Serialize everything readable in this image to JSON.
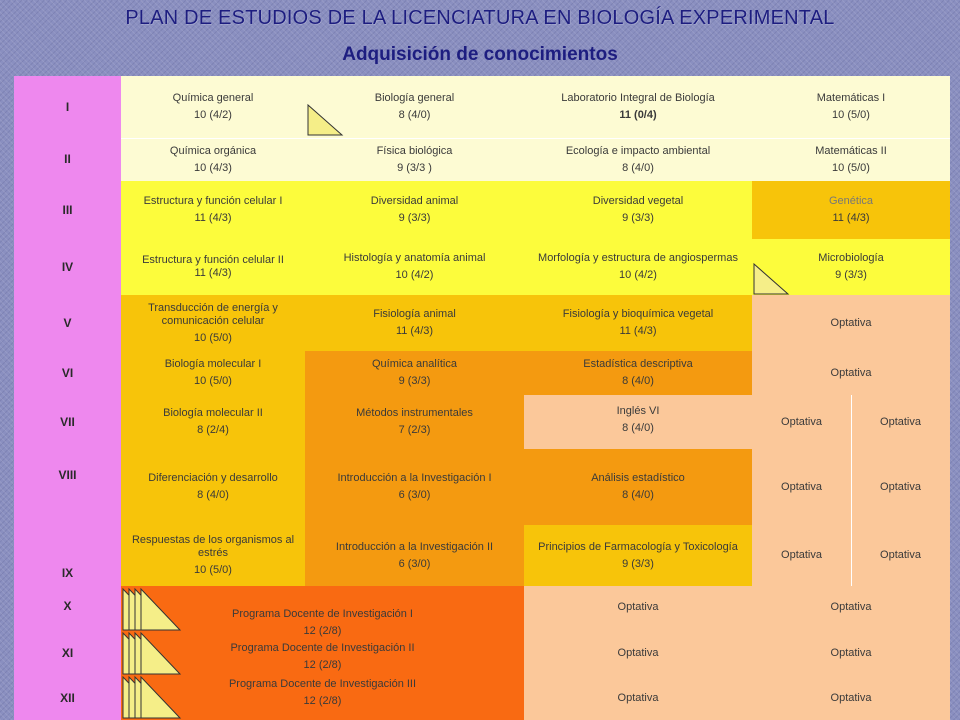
{
  "page": {
    "title": "PLAN DE ESTUDIOS DE LA LICENCIATURA EN BIOLOGÍA EXPERIMENTAL",
    "subtitle": "Adquisición de conocimientos"
  },
  "semesters": [
    "I",
    "II",
    "III",
    "IV",
    "V",
    "VI",
    "VII",
    "VIII",
    "IX",
    "X",
    "XI",
    "XII"
  ],
  "rows": {
    "r1": [
      {
        "name": "Química general",
        "credits": "10 (4/2)"
      },
      {
        "name": "Biología general",
        "credits": "8 (4/0)"
      },
      {
        "name": "Laboratorio Integral de Biología",
        "credits": "11 (0/4)"
      },
      {
        "name": "Matemáticas I",
        "credits": "10 (5/0)"
      }
    ],
    "r2": [
      {
        "name": "Química orgánica",
        "credits": "10 (4/3)"
      },
      {
        "name": "Física biológica",
        "credits": "9 (3/3 )"
      },
      {
        "name": "Ecología e impacto ambiental",
        "credits": "8 (4/0)"
      },
      {
        "name": "Matemáticas II",
        "credits": "10 (5/0)"
      }
    ],
    "r3": [
      {
        "name": "Estructura y función celular I",
        "credits": "11 (4/3)"
      },
      {
        "name": "Diversidad animal",
        "credits": "9 (3/3)"
      },
      {
        "name": "Diversidad vegetal",
        "credits": "9 (3/3)"
      },
      {
        "name": "Genética",
        "credits": "11 (4/3)"
      }
    ],
    "r4": [
      {
        "name": "Estructura y función celular II",
        "credits": "11 (4/3)"
      },
      {
        "name": "Histología y anatomía animal",
        "credits": "10 (4/2)"
      },
      {
        "name": "Morfología y estructura de angiospermas",
        "credits": "10 (4/2)"
      },
      {
        "name": "Microbiología",
        "credits": "9 (3/3)"
      }
    ],
    "r5": [
      {
        "name": "Transducción de energía y comunicación celular",
        "credits": "10 (5/0)"
      },
      {
        "name": "Fisiología animal",
        "credits": "11 (4/3)"
      },
      {
        "name": "Fisiología y bioquímica vegetal",
        "credits": "11 (4/3)"
      },
      {
        "name": "Optativa"
      }
    ],
    "r6": [
      {
        "name": "Biología molecular I",
        "credits": "10 (5/0)"
      },
      {
        "name": "Química analítica",
        "credits": "9 (3/3)"
      },
      {
        "name": "Estadística descriptiva",
        "credits": "8 (4/0)"
      },
      {
        "name": "Optativa"
      }
    ],
    "r7": [
      {
        "name": "Biología molecular II",
        "credits": "8 (2/4)"
      },
      {
        "name": "Métodos instrumentales",
        "credits": "7 (2/3)"
      },
      {
        "name": "Inglés VI",
        "credits": "8 (4/0)"
      },
      {
        "name": "Optativa"
      },
      {
        "name": "Optativa"
      }
    ],
    "r8": [
      {
        "name": "Diferenciación y desarrollo",
        "credits": "8 (4/0)"
      },
      {
        "name": "Introducción a la Investigación I",
        "credits": "6 (3/0)"
      },
      {
        "name": "Análisis estadístico",
        "credits": "8 (4/0)"
      },
      {
        "name": "Optativa"
      },
      {
        "name": "Optativa"
      }
    ],
    "r9": [
      {
        "name": "Respuestas de los organismos al estrés",
        "credits": "10 (5/0)"
      },
      {
        "name": "Introducción a la Investigación II",
        "credits": "6 (3/0)"
      },
      {
        "name": "Principios de Farmacología y Toxicología",
        "credits": "9 (3/3)"
      },
      {
        "name": "Optativa"
      },
      {
        "name": "Optativa"
      }
    ],
    "r10": [
      {
        "name": "Programa Docente de Investigación I",
        "credits": "12 (2/8)"
      },
      {
        "name": "Optativa"
      },
      {
        "name": "Optativa"
      }
    ],
    "r11": [
      {
        "name": "Programa Docente de Investigación II",
        "credits": "12 (2/8)"
      },
      {
        "name": "Optativa"
      },
      {
        "name": "Optativa"
      }
    ],
    "r12": [
      {
        "name": "Programa Docente de Investigación III",
        "credits": "12 (2/8)"
      },
      {
        "name": "Optativa"
      },
      {
        "name": "Optativa"
      }
    ]
  },
  "colors": {
    "semester": "#ee88ee",
    "pale": "#fdfbd3",
    "yellow": "#fcfc3c",
    "gold": "#f7c40a",
    "orange": "#f49a10",
    "red_orange": "#f96a12",
    "peach": "#fbc89a",
    "triangle": "#f5ee88"
  }
}
